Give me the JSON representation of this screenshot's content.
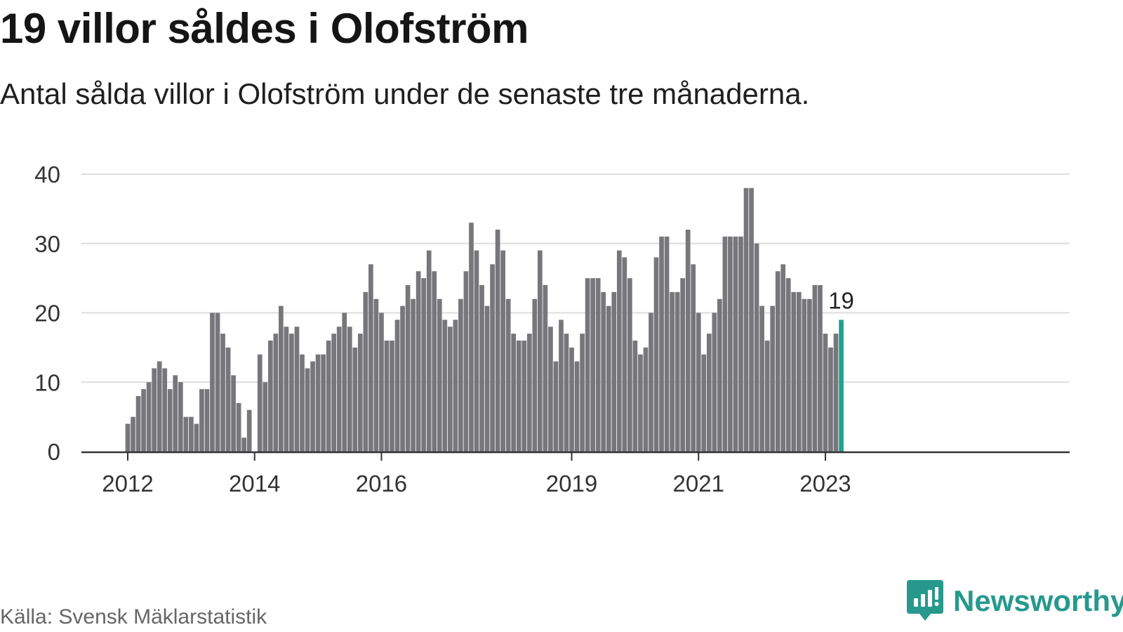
{
  "title": "19 villor såldes i Olofström",
  "subtitle": "Antal sålda villor i Olofström under de senaste tre månaderna.",
  "source": "Källa: Svensk Mäklarstatistik",
  "brand": {
    "name": "Newsworthy",
    "icon": "newsworthy-logo-icon",
    "color": "#26998c"
  },
  "chart_data": {
    "type": "bar",
    "title": "19 villor såldes i Olofström",
    "subtitle": "Antal sålda villor i Olofström under de senaste tre månaderna.",
    "xlabel": "",
    "ylabel": "",
    "ylim": [
      0,
      40
    ],
    "yticks": [
      "0",
      "10",
      "20",
      "30",
      "40"
    ],
    "xticks": [
      {
        "label": "2012",
        "month": "2012-01"
      },
      {
        "label": "2014",
        "month": "2014-01"
      },
      {
        "label": "2016",
        "month": "2016-01"
      },
      {
        "label": "2019",
        "month": "2019-01"
      },
      {
        "label": "2021",
        "month": "2021-01"
      },
      {
        "label": "2023",
        "month": "2023-01"
      }
    ],
    "x_start": "2012-01",
    "x_end": "2023-03",
    "grid": true,
    "legend": "none",
    "colors": {
      "bar": "#77767a",
      "highlight": "#22a090",
      "grid": "#dddddd",
      "axis": "#333333"
    },
    "highlight_label": "19",
    "values": [
      4,
      5,
      8,
      9,
      10,
      12,
      13,
      12,
      9,
      11,
      10,
      5,
      5,
      4,
      9,
      9,
      20,
      20,
      17,
      15,
      11,
      7,
      2,
      6,
      0,
      14,
      10,
      16,
      17,
      21,
      18,
      17,
      18,
      14,
      12,
      13,
      14,
      14,
      16,
      17,
      18,
      20,
      18,
      15,
      17,
      23,
      27,
      22,
      20,
      16,
      16,
      19,
      21,
      24,
      22,
      26,
      25,
      29,
      26,
      22,
      19,
      18,
      19,
      22,
      26,
      33,
      29,
      24,
      21,
      27,
      32,
      29,
      22,
      17,
      16,
      16,
      17,
      22,
      29,
      24,
      18,
      13,
      19,
      17,
      15,
      13,
      17,
      25,
      25,
      25,
      23,
      21,
      23,
      29,
      28,
      25,
      16,
      14,
      15,
      20,
      28,
      31,
      31,
      23,
      23,
      25,
      32,
      27,
      20,
      14,
      17,
      20,
      22,
      31,
      31,
      31,
      31,
      38,
      38,
      30,
      21,
      16,
      21,
      26,
      27,
      25,
      23,
      23,
      22,
      22,
      24,
      24,
      17,
      15,
      17,
      19
    ]
  }
}
